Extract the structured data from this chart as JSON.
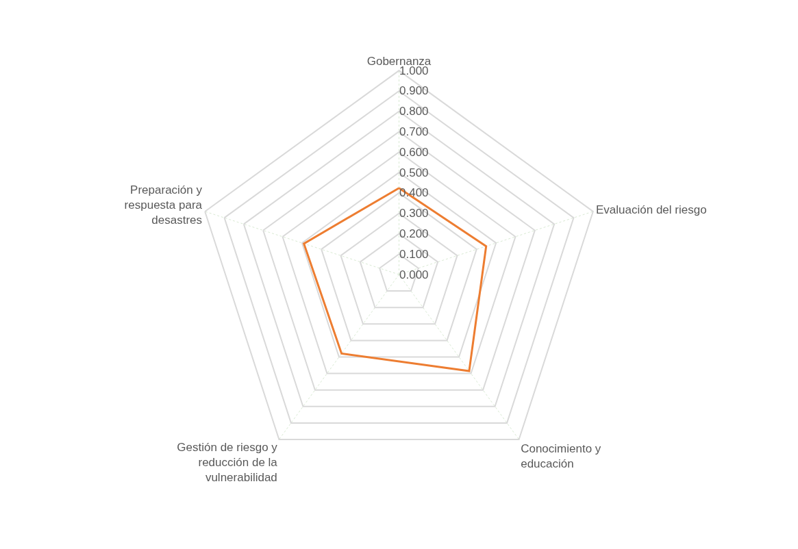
{
  "chart_data": {
    "type": "radar",
    "categories": [
      "Gobernanza",
      "Evaluación del riesgo",
      "Conocimiento y educación",
      "Gestión de riesgo y reducción de la vulnerabilidad",
      "Preparación y respuesta para desastres"
    ],
    "series": [
      {
        "color": "#ed7d31",
        "values": [
          0.424,
          0.449,
          0.585,
          0.479,
          0.49
        ]
      }
    ],
    "ylim": [
      0,
      1
    ],
    "yticks": [
      {
        "value": 0,
        "label": "0.000"
      },
      {
        "value": 0.1,
        "label": "0.100"
      },
      {
        "value": 0.2,
        "label": "0.200"
      },
      {
        "value": 0.3,
        "label": "0.300"
      },
      {
        "value": 0.4,
        "label": "0.400"
      },
      {
        "value": 0.5,
        "label": "0.500"
      },
      {
        "value": 0.6,
        "label": "0.600"
      },
      {
        "value": 0.7,
        "label": "0.700"
      },
      {
        "value": 0.8,
        "label": "0.800"
      },
      {
        "value": 0.9,
        "label": "0.900"
      },
      {
        "value": 1,
        "label": "1.000"
      }
    ],
    "grid": true,
    "marker": "none",
    "line_style": "solid"
  }
}
